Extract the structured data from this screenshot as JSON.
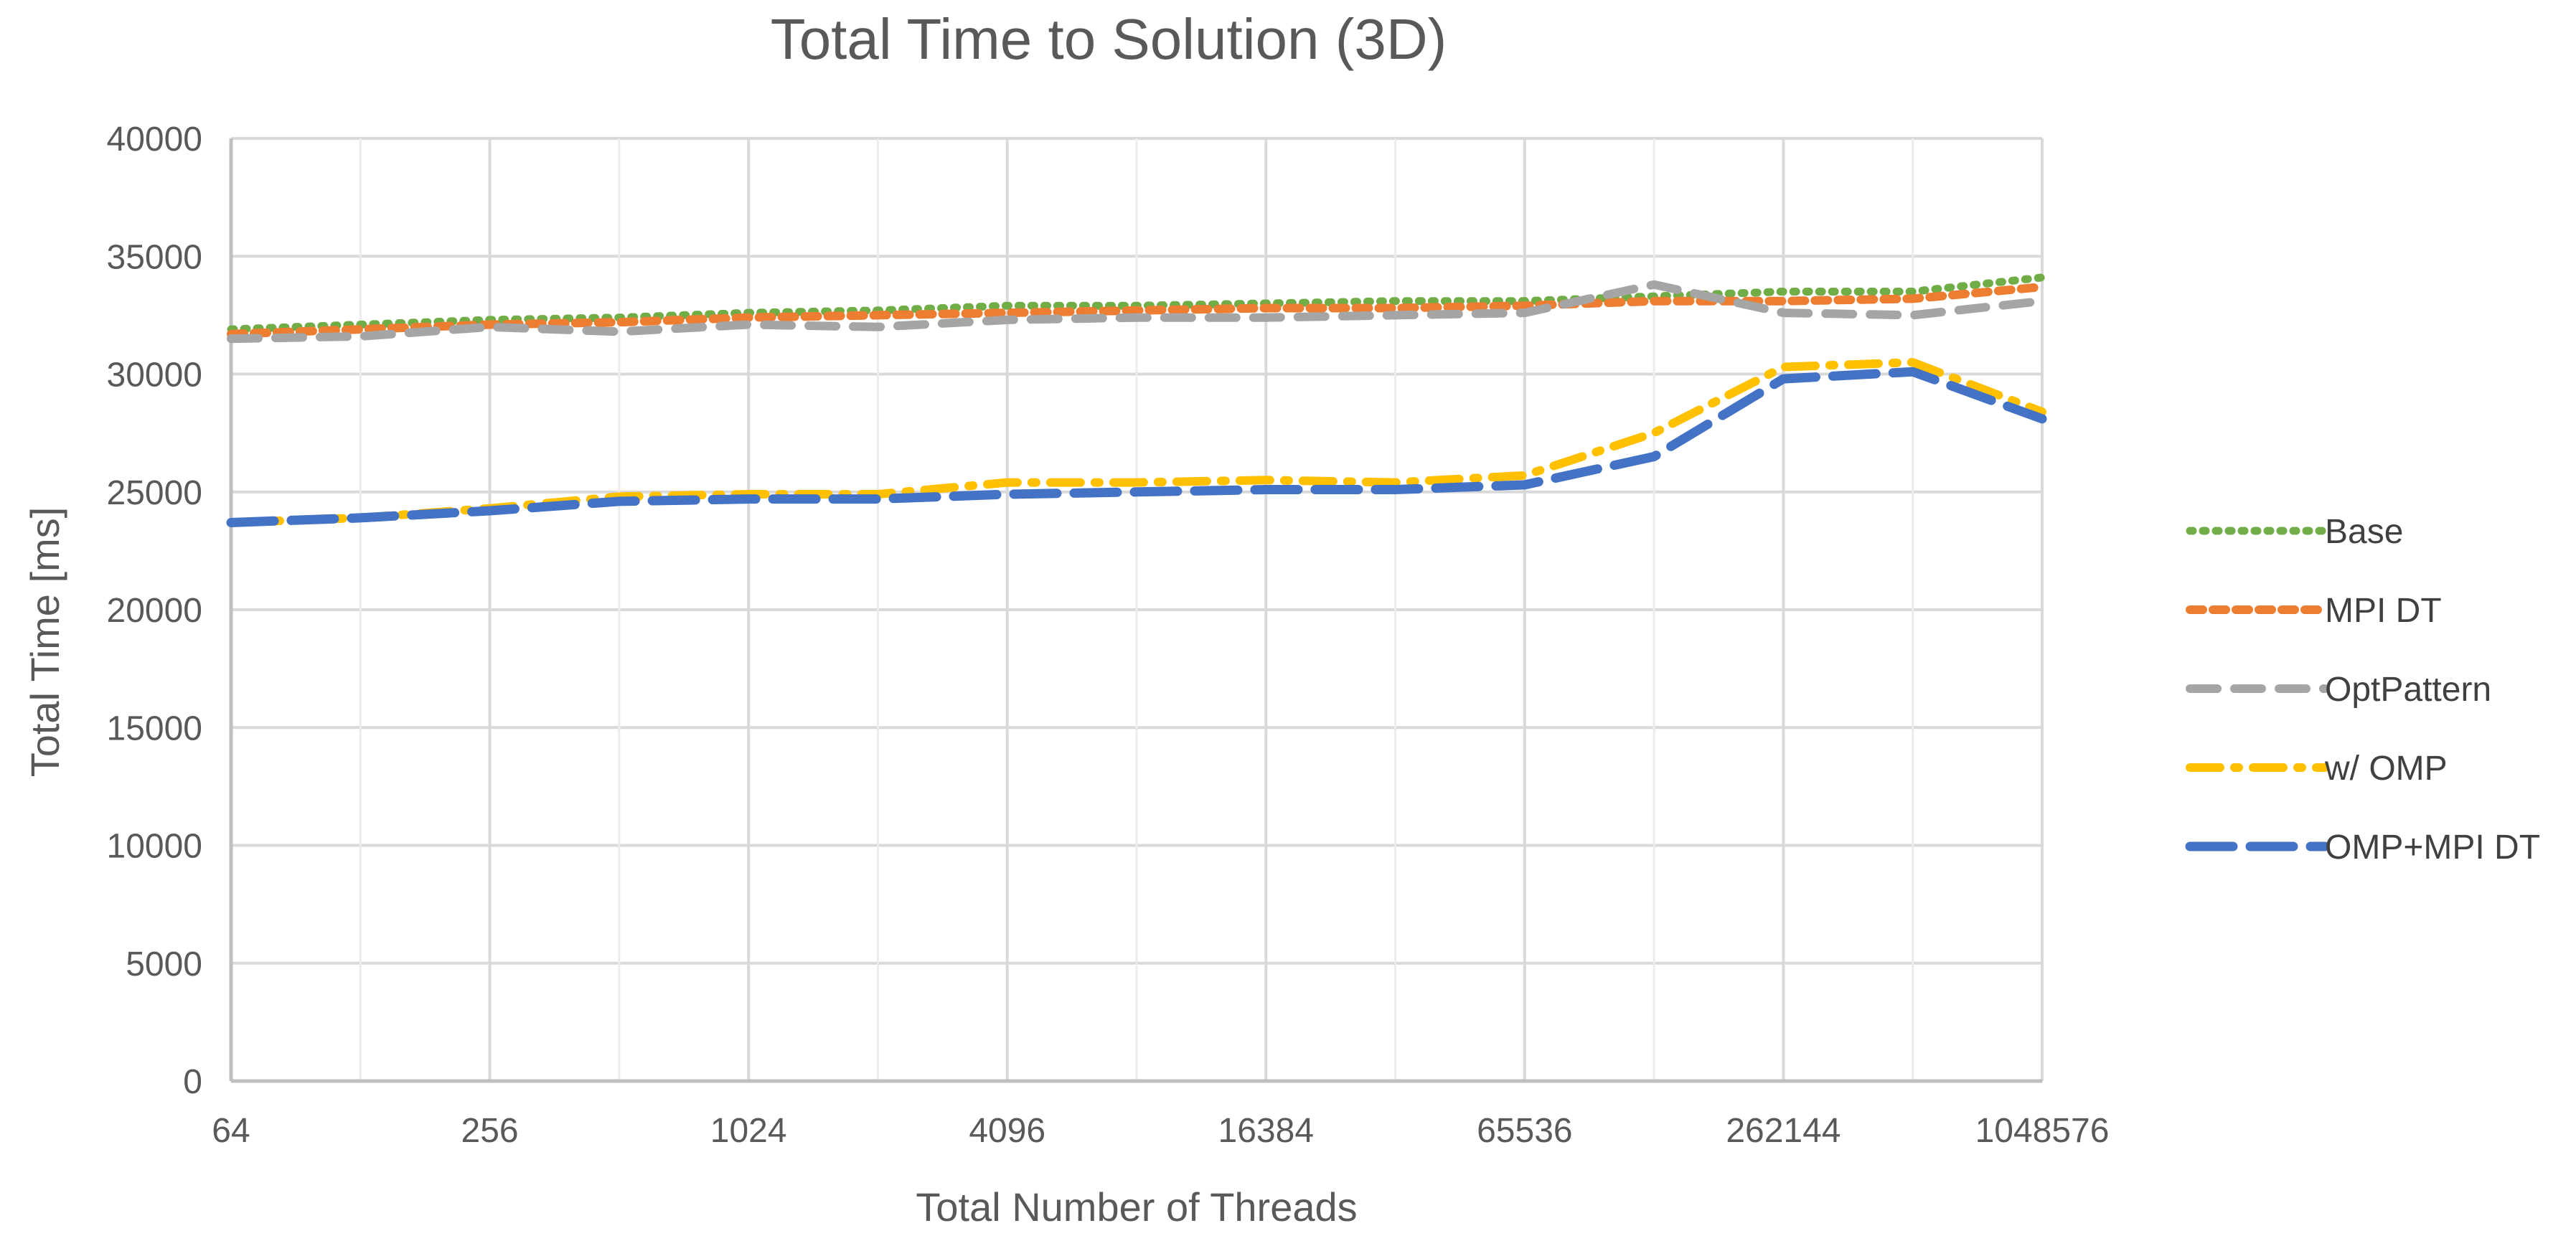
{
  "chart_data": {
    "type": "line",
    "title": "Total Time to Solution (3D)",
    "xlabel": "Total Number of Threads",
    "ylabel": "Total Time [ms]",
    "x_scale": "log2",
    "x": [
      64,
      128,
      256,
      512,
      1024,
      2048,
      4096,
      8192,
      16384,
      32768,
      65536,
      131072,
      262144,
      524288,
      1048576
    ],
    "x_tick_labels": [
      "64",
      "256",
      "1024",
      "4096",
      "16384",
      "65536",
      "262144",
      "1048576"
    ],
    "y_ticks": [
      0,
      5000,
      10000,
      15000,
      20000,
      25000,
      30000,
      35000,
      40000
    ],
    "ylim": [
      0,
      40000
    ],
    "grid": true,
    "legend_position": "right",
    "series": [
      {
        "name": "Base",
        "color": "#70AD47",
        "dash": "dotted",
        "values": [
          31900,
          32100,
          32300,
          32400,
          32600,
          32700,
          32900,
          32900,
          33000,
          33100,
          33100,
          33300,
          33500,
          33500,
          34100
        ]
      },
      {
        "name": "MPI DT",
        "color": "#ED7D31",
        "dash": "short-dash",
        "values": [
          31700,
          31900,
          32100,
          32200,
          32400,
          32500,
          32600,
          32700,
          32800,
          32800,
          32900,
          33100,
          33100,
          33200,
          33700
        ]
      },
      {
        "name": "OptPattern",
        "color": "#A5A5A5",
        "dash": "dash",
        "values": [
          31500,
          31600,
          32000,
          31800,
          32100,
          32000,
          32300,
          32400,
          32400,
          32500,
          32600,
          33800,
          32600,
          32500,
          33100
        ]
      },
      {
        "name": "w/ OMP",
        "color": "#FFC000",
        "dash": "dash-dot",
        "values": [
          23700,
          23900,
          24300,
          24800,
          24900,
          24900,
          25400,
          25400,
          25500,
          25400,
          25700,
          27500,
          30300,
          30500,
          28400
        ]
      },
      {
        "name": "OMP+MPI DT",
        "color": "#4472C4",
        "dash": "long-dash",
        "values": [
          23700,
          23900,
          24200,
          24600,
          24700,
          24700,
          24900,
          25000,
          25100,
          25100,
          25300,
          26500,
          29800,
          30100,
          28100
        ]
      }
    ]
  }
}
